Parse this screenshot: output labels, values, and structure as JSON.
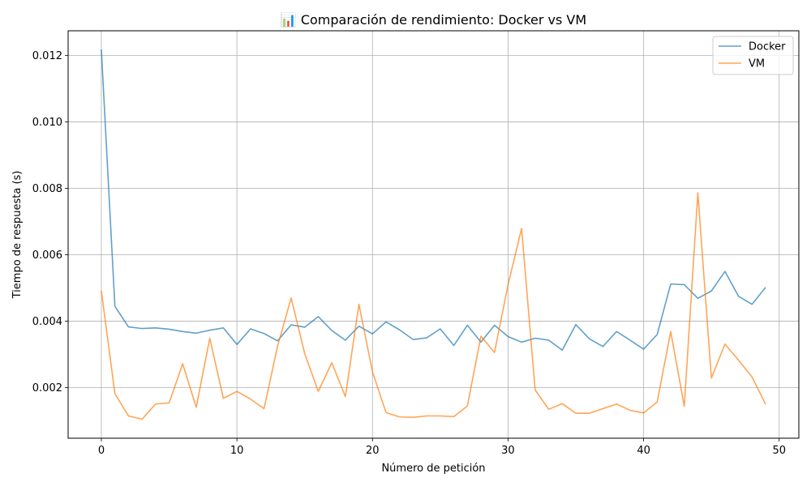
{
  "chart_data": {
    "type": "line",
    "title": "📊 Comparación de rendimiento: Docker vs VM",
    "xlabel": "Número de petición",
    "ylabel": "Tiempo de respuesta (s)",
    "xlim": [
      -2.45,
      51.45
    ],
    "ylim": [
      0.00048,
      0.01274
    ],
    "x_ticks": [
      0,
      10,
      20,
      30,
      40,
      50
    ],
    "x_tick_labels": [
      "0",
      "10",
      "20",
      "30",
      "40",
      "50"
    ],
    "y_ticks": [
      0.002,
      0.004,
      0.006,
      0.008,
      0.01,
      0.012
    ],
    "y_tick_labels": [
      "0.002",
      "0.004",
      "0.006",
      "0.008",
      "0.010",
      "0.012"
    ],
    "grid": true,
    "legend_position": "top-right",
    "x": [
      0,
      1,
      2,
      3,
      4,
      5,
      6,
      7,
      8,
      9,
      10,
      11,
      12,
      13,
      14,
      15,
      16,
      17,
      18,
      19,
      20,
      21,
      22,
      23,
      24,
      25,
      26,
      27,
      28,
      29,
      30,
      31,
      32,
      33,
      34,
      35,
      36,
      37,
      38,
      39,
      40,
      41,
      42,
      43,
      44,
      45,
      46,
      47,
      48,
      49
    ],
    "series": [
      {
        "name": "Docker",
        "color": "#1f77b4",
        "values": [
          0.01218,
          0.00445,
          0.00383,
          0.00378,
          0.0038,
          0.00376,
          0.00369,
          0.00364,
          0.00373,
          0.0038,
          0.0033,
          0.00377,
          0.00363,
          0.00341,
          0.00389,
          0.00382,
          0.00414,
          0.00372,
          0.00343,
          0.00385,
          0.00362,
          0.00398,
          0.00374,
          0.00345,
          0.0035,
          0.00377,
          0.00327,
          0.00388,
          0.00337,
          0.00388,
          0.00354,
          0.00337,
          0.00349,
          0.00343,
          0.00313,
          0.0039,
          0.00347,
          0.00324,
          0.00369,
          0.00343,
          0.00316,
          0.0036,
          0.00512,
          0.0051,
          0.00469,
          0.00491,
          0.0055,
          0.00475,
          0.00451,
          0.00502
        ]
      },
      {
        "name": "VM",
        "color": "#ff7f0e",
        "values": [
          0.00492,
          0.00182,
          0.00115,
          0.00105,
          0.00151,
          0.00154,
          0.00272,
          0.00141,
          0.00349,
          0.00168,
          0.00189,
          0.00166,
          0.00137,
          0.00325,
          0.0047,
          0.00303,
          0.00189,
          0.00275,
          0.00173,
          0.00451,
          0.00248,
          0.00125,
          0.00112,
          0.00111,
          0.00115,
          0.00115,
          0.00113,
          0.00145,
          0.00355,
          0.00306,
          0.0051,
          0.00679,
          0.00193,
          0.00135,
          0.00152,
          0.00123,
          0.00123,
          0.00137,
          0.00151,
          0.00132,
          0.00124,
          0.00157,
          0.00369,
          0.00144,
          0.00786,
          0.00229,
          0.00331,
          0.00283,
          0.00232,
          0.0015
        ]
      }
    ]
  }
}
